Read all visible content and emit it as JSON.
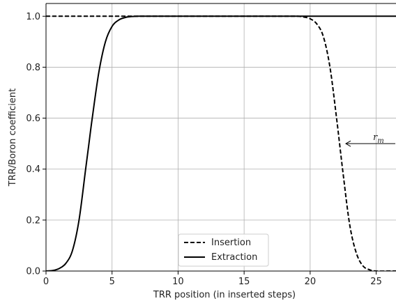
{
  "chart_data": {
    "type": "line",
    "title": "",
    "xlabel": "TRR position (in inserted steps)",
    "ylabel": "TRR/Boron coefficient",
    "xlim": [
      0,
      26.5
    ],
    "ylim": [
      0,
      1.05
    ],
    "xticks": [
      0,
      5,
      10,
      15,
      20,
      25
    ],
    "yticks": [
      0.0,
      0.2,
      0.4,
      0.6,
      0.8,
      1.0
    ],
    "xtick_labels": [
      "0",
      "5",
      "10",
      "15",
      "20",
      "25"
    ],
    "ytick_labels": [
      "0.0",
      "0.2",
      "0.4",
      "0.6",
      "0.8",
      "1.0"
    ],
    "grid": true,
    "legend_position": "bottom-center",
    "series": [
      {
        "name": "Insertion",
        "style": "dashed",
        "color": "#000000",
        "x": [
          0,
          2,
          4,
          6,
          8,
          10,
          12,
          14,
          16,
          18,
          19,
          19.5,
          20,
          20.5,
          21,
          21.5,
          22,
          22.5,
          23,
          23.5,
          24,
          24.5,
          25,
          26,
          26.5
        ],
        "y": [
          1.0,
          1.0,
          1.0,
          1.0,
          1.0,
          1.0,
          1.0,
          1.0,
          1.0,
          1.0,
          1.0,
          0.997,
          0.99,
          0.97,
          0.92,
          0.8,
          0.6,
          0.38,
          0.18,
          0.07,
          0.02,
          0.005,
          0.0,
          0.0,
          0.0
        ]
      },
      {
        "name": "Extraction",
        "style": "solid",
        "color": "#000000",
        "x": [
          0,
          0.5,
          1,
          1.5,
          2,
          2.5,
          3,
          3.25,
          3.5,
          4,
          4.5,
          5,
          5.5,
          6,
          6.5,
          7,
          7.5,
          10,
          15,
          20,
          25,
          26.5
        ],
        "y": [
          0.0,
          0.002,
          0.01,
          0.03,
          0.08,
          0.2,
          0.4,
          0.5,
          0.6,
          0.78,
          0.9,
          0.96,
          0.985,
          0.995,
          0.999,
          1.0,
          1.0,
          1.0,
          1.0,
          1.0,
          1.0,
          1.0
        ]
      }
    ],
    "annotations": [
      {
        "text": "r",
        "subscript": "m",
        "arrow_from_x": 26.5,
        "arrow_to_x": 22.7,
        "y": 0.5
      }
    ]
  }
}
